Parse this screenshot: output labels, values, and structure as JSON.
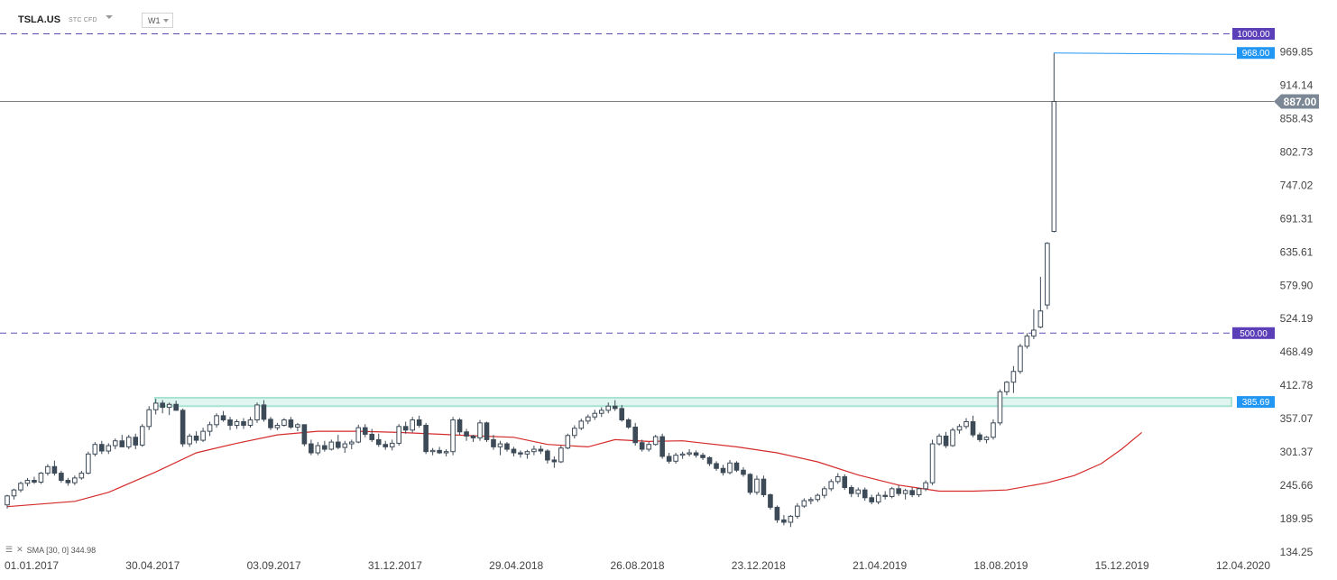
{
  "header": {
    "symbol": "TSLA.US",
    "instrument_type": "STC CFD",
    "interval": "W1"
  },
  "indicator_legend": {
    "icon": "bars-icon",
    "close": "✕",
    "text": "SMA [30, 0] 344.98"
  },
  "colors": {
    "bull_fill": "#ffffff",
    "bear_fill": "#3d4a57",
    "candle_stroke": "#3d4a57",
    "sma": "#d52b2b",
    "level_line": "#5b4db5",
    "level_badge": "#5b3fb8",
    "price_badge": "#2196f3",
    "current_badge": "#7b8794",
    "zone": "#a6e3d0"
  },
  "chart_data": {
    "type": "candlestick",
    "symbol": "TSLA.US",
    "timeframe": "W1",
    "ylim": [
      134.25,
      1025.4
    ],
    "y_ticks": [
      "969.85",
      "914.14",
      "858.43",
      "802.73",
      "747.02",
      "691.31",
      "635.61",
      "579.90",
      "524.19",
      "468.49",
      "412.78",
      "357.07",
      "301.37",
      "245.66",
      "189.95",
      "134.25"
    ],
    "x_ticks": [
      "01.01.2017",
      "30.04.2017",
      "03.09.2017",
      "31.12.2017",
      "29.04.2018",
      "26.08.2018",
      "23.12.2018",
      "21.04.2019",
      "18.08.2019",
      "15.12.2019",
      "12.04.2020"
    ],
    "grid": false,
    "weeks_total": 172,
    "candles": [
      {
        "o": 213,
        "h": 230,
        "l": 207,
        "c": 228
      },
      {
        "o": 228,
        "h": 240,
        "l": 222,
        "c": 238
      },
      {
        "o": 238,
        "h": 252,
        "l": 234,
        "c": 249
      },
      {
        "o": 249,
        "h": 258,
        "l": 244,
        "c": 254
      },
      {
        "o": 254,
        "h": 260,
        "l": 248,
        "c": 251
      },
      {
        "o": 251,
        "h": 268,
        "l": 248,
        "c": 266
      },
      {
        "o": 266,
        "h": 281,
        "l": 262,
        "c": 277
      },
      {
        "o": 277,
        "h": 287,
        "l": 262,
        "c": 266
      },
      {
        "o": 266,
        "h": 270,
        "l": 250,
        "c": 254
      },
      {
        "o": 254,
        "h": 258,
        "l": 245,
        "c": 250
      },
      {
        "o": 250,
        "h": 262,
        "l": 246,
        "c": 258
      },
      {
        "o": 258,
        "h": 270,
        "l": 255,
        "c": 266
      },
      {
        "o": 266,
        "h": 302,
        "l": 264,
        "c": 298
      },
      {
        "o": 298,
        "h": 318,
        "l": 294,
        "c": 314
      },
      {
        "o": 314,
        "h": 320,
        "l": 298,
        "c": 303
      },
      {
        "o": 303,
        "h": 316,
        "l": 298,
        "c": 312
      },
      {
        "o": 312,
        "h": 324,
        "l": 306,
        "c": 320
      },
      {
        "o": 320,
        "h": 330,
        "l": 312,
        "c": 310
      },
      {
        "o": 310,
        "h": 330,
        "l": 306,
        "c": 326
      },
      {
        "o": 326,
        "h": 332,
        "l": 306,
        "c": 313
      },
      {
        "o": 313,
        "h": 348,
        "l": 310,
        "c": 344
      },
      {
        "o": 344,
        "h": 378,
        "l": 338,
        "c": 372
      },
      {
        "o": 372,
        "h": 390,
        "l": 364,
        "c": 383
      },
      {
        "o": 383,
        "h": 388,
        "l": 366,
        "c": 376
      },
      {
        "o": 376,
        "h": 384,
        "l": 363,
        "c": 381
      },
      {
        "o": 381,
        "h": 387,
        "l": 372,
        "c": 371
      },
      {
        "o": 371,
        "h": 374,
        "l": 310,
        "c": 315
      },
      {
        "o": 315,
        "h": 332,
        "l": 310,
        "c": 328
      },
      {
        "o": 328,
        "h": 336,
        "l": 316,
        "c": 321
      },
      {
        "o": 321,
        "h": 342,
        "l": 318,
        "c": 336
      },
      {
        "o": 336,
        "h": 352,
        "l": 328,
        "c": 347
      },
      {
        "o": 347,
        "h": 366,
        "l": 342,
        "c": 362
      },
      {
        "o": 362,
        "h": 370,
        "l": 352,
        "c": 355
      },
      {
        "o": 355,
        "h": 360,
        "l": 338,
        "c": 346
      },
      {
        "o": 346,
        "h": 356,
        "l": 340,
        "c": 352
      },
      {
        "o": 352,
        "h": 358,
        "l": 340,
        "c": 346
      },
      {
        "o": 346,
        "h": 360,
        "l": 342,
        "c": 355
      },
      {
        "o": 355,
        "h": 384,
        "l": 350,
        "c": 380
      },
      {
        "o": 380,
        "h": 388,
        "l": 352,
        "c": 356
      },
      {
        "o": 356,
        "h": 360,
        "l": 338,
        "c": 342
      },
      {
        "o": 342,
        "h": 350,
        "l": 338,
        "c": 346
      },
      {
        "o": 346,
        "h": 358,
        "l": 344,
        "c": 355
      },
      {
        "o": 355,
        "h": 360,
        "l": 340,
        "c": 343
      },
      {
        "o": 343,
        "h": 350,
        "l": 336,
        "c": 347
      },
      {
        "o": 347,
        "h": 345,
        "l": 311,
        "c": 315
      },
      {
        "o": 315,
        "h": 322,
        "l": 296,
        "c": 300
      },
      {
        "o": 300,
        "h": 318,
        "l": 296,
        "c": 312
      },
      {
        "o": 312,
        "h": 320,
        "l": 302,
        "c": 306
      },
      {
        "o": 306,
        "h": 322,
        "l": 304,
        "c": 318
      },
      {
        "o": 318,
        "h": 330,
        "l": 306,
        "c": 309
      },
      {
        "o": 309,
        "h": 320,
        "l": 300,
        "c": 315
      },
      {
        "o": 315,
        "h": 322,
        "l": 306,
        "c": 318
      },
      {
        "o": 318,
        "h": 347,
        "l": 316,
        "c": 342
      },
      {
        "o": 342,
        "h": 348,
        "l": 326,
        "c": 331
      },
      {
        "o": 331,
        "h": 340,
        "l": 318,
        "c": 322
      },
      {
        "o": 322,
        "h": 332,
        "l": 310,
        "c": 314
      },
      {
        "o": 314,
        "h": 320,
        "l": 305,
        "c": 310
      },
      {
        "o": 310,
        "h": 322,
        "l": 304,
        "c": 316
      },
      {
        "o": 316,
        "h": 348,
        "l": 312,
        "c": 344
      },
      {
        "o": 344,
        "h": 352,
        "l": 332,
        "c": 338
      },
      {
        "o": 338,
        "h": 360,
        "l": 334,
        "c": 355
      },
      {
        "o": 355,
        "h": 362,
        "l": 342,
        "c": 346
      },
      {
        "o": 346,
        "h": 350,
        "l": 298,
        "c": 302
      },
      {
        "o": 302,
        "h": 308,
        "l": 296,
        "c": 304
      },
      {
        "o": 304,
        "h": 310,
        "l": 298,
        "c": 300
      },
      {
        "o": 300,
        "h": 306,
        "l": 294,
        "c": 302
      },
      {
        "o": 302,
        "h": 360,
        "l": 296,
        "c": 355
      },
      {
        "o": 355,
        "h": 358,
        "l": 330,
        "c": 335
      },
      {
        "o": 335,
        "h": 340,
        "l": 320,
        "c": 328
      },
      {
        "o": 328,
        "h": 330,
        "l": 318,
        "c": 325
      },
      {
        "o": 325,
        "h": 355,
        "l": 320,
        "c": 350
      },
      {
        "o": 350,
        "h": 352,
        "l": 318,
        "c": 322
      },
      {
        "o": 322,
        "h": 330,
        "l": 305,
        "c": 310
      },
      {
        "o": 310,
        "h": 320,
        "l": 296,
        "c": 315
      },
      {
        "o": 315,
        "h": 318,
        "l": 302,
        "c": 306
      },
      {
        "o": 306,
        "h": 310,
        "l": 294,
        "c": 300
      },
      {
        "o": 300,
        "h": 304,
        "l": 292,
        "c": 298
      },
      {
        "o": 298,
        "h": 305,
        "l": 290,
        "c": 302
      },
      {
        "o": 302,
        "h": 312,
        "l": 296,
        "c": 306
      },
      {
        "o": 306,
        "h": 312,
        "l": 298,
        "c": 303
      },
      {
        "o": 303,
        "h": 306,
        "l": 282,
        "c": 288
      },
      {
        "o": 288,
        "h": 294,
        "l": 275,
        "c": 285
      },
      {
        "o": 285,
        "h": 312,
        "l": 283,
        "c": 308
      },
      {
        "o": 308,
        "h": 332,
        "l": 306,
        "c": 329
      },
      {
        "o": 329,
        "h": 346,
        "l": 324,
        "c": 341
      },
      {
        "o": 341,
        "h": 357,
        "l": 338,
        "c": 353
      },
      {
        "o": 353,
        "h": 364,
        "l": 348,
        "c": 360
      },
      {
        "o": 360,
        "h": 372,
        "l": 355,
        "c": 366
      },
      {
        "o": 366,
        "h": 376,
        "l": 360,
        "c": 371
      },
      {
        "o": 371,
        "h": 384,
        "l": 366,
        "c": 378
      },
      {
        "o": 378,
        "h": 388,
        "l": 370,
        "c": 374
      },
      {
        "o": 374,
        "h": 380,
        "l": 352,
        "c": 355
      },
      {
        "o": 355,
        "h": 358,
        "l": 340,
        "c": 343
      },
      {
        "o": 343,
        "h": 350,
        "l": 312,
        "c": 317
      },
      {
        "o": 317,
        "h": 322,
        "l": 302,
        "c": 306
      },
      {
        "o": 306,
        "h": 318,
        "l": 302,
        "c": 314
      },
      {
        "o": 314,
        "h": 330,
        "l": 312,
        "c": 327
      },
      {
        "o": 327,
        "h": 332,
        "l": 290,
        "c": 294
      },
      {
        "o": 294,
        "h": 300,
        "l": 282,
        "c": 286
      },
      {
        "o": 286,
        "h": 300,
        "l": 282,
        "c": 296
      },
      {
        "o": 296,
        "h": 302,
        "l": 290,
        "c": 298
      },
      {
        "o": 298,
        "h": 306,
        "l": 294,
        "c": 300
      },
      {
        "o": 300,
        "h": 304,
        "l": 292,
        "c": 296
      },
      {
        "o": 296,
        "h": 300,
        "l": 288,
        "c": 292
      },
      {
        "o": 292,
        "h": 294,
        "l": 278,
        "c": 282
      },
      {
        "o": 282,
        "h": 286,
        "l": 270,
        "c": 274
      },
      {
        "o": 274,
        "h": 280,
        "l": 262,
        "c": 267
      },
      {
        "o": 267,
        "h": 288,
        "l": 264,
        "c": 283
      },
      {
        "o": 283,
        "h": 286,
        "l": 268,
        "c": 271
      },
      {
        "o": 271,
        "h": 276,
        "l": 260,
        "c": 264
      },
      {
        "o": 264,
        "h": 266,
        "l": 230,
        "c": 234
      },
      {
        "o": 234,
        "h": 262,
        "l": 230,
        "c": 256
      },
      {
        "o": 256,
        "h": 262,
        "l": 226,
        "c": 230
      },
      {
        "o": 230,
        "h": 232,
        "l": 205,
        "c": 209
      },
      {
        "o": 209,
        "h": 212,
        "l": 183,
        "c": 188
      },
      {
        "o": 188,
        "h": 196,
        "l": 179,
        "c": 184
      },
      {
        "o": 184,
        "h": 196,
        "l": 176,
        "c": 194
      },
      {
        "o": 194,
        "h": 216,
        "l": 190,
        "c": 211
      },
      {
        "o": 211,
        "h": 224,
        "l": 208,
        "c": 220
      },
      {
        "o": 220,
        "h": 226,
        "l": 214,
        "c": 222
      },
      {
        "o": 222,
        "h": 232,
        "l": 218,
        "c": 229
      },
      {
        "o": 229,
        "h": 244,
        "l": 224,
        "c": 240
      },
      {
        "o": 240,
        "h": 256,
        "l": 236,
        "c": 252
      },
      {
        "o": 252,
        "h": 266,
        "l": 248,
        "c": 260
      },
      {
        "o": 260,
        "h": 264,
        "l": 238,
        "c": 242
      },
      {
        "o": 242,
        "h": 246,
        "l": 226,
        "c": 232
      },
      {
        "o": 232,
        "h": 242,
        "l": 226,
        "c": 238
      },
      {
        "o": 238,
        "h": 242,
        "l": 220,
        "c": 225
      },
      {
        "o": 225,
        "h": 230,
        "l": 214,
        "c": 218
      },
      {
        "o": 218,
        "h": 234,
        "l": 214,
        "c": 229
      },
      {
        "o": 229,
        "h": 236,
        "l": 222,
        "c": 227
      },
      {
        "o": 227,
        "h": 243,
        "l": 224,
        "c": 240
      },
      {
        "o": 240,
        "h": 246,
        "l": 228,
        "c": 232
      },
      {
        "o": 232,
        "h": 240,
        "l": 222,
        "c": 237
      },
      {
        "o": 237,
        "h": 242,
        "l": 226,
        "c": 230
      },
      {
        "o": 230,
        "h": 242,
        "l": 226,
        "c": 240
      },
      {
        "o": 240,
        "h": 254,
        "l": 236,
        "c": 250
      },
      {
        "o": 250,
        "h": 322,
        "l": 246,
        "c": 315
      },
      {
        "o": 315,
        "h": 332,
        "l": 312,
        "c": 328
      },
      {
        "o": 328,
        "h": 335,
        "l": 308,
        "c": 312
      },
      {
        "o": 312,
        "h": 342,
        "l": 310,
        "c": 338
      },
      {
        "o": 338,
        "h": 348,
        "l": 332,
        "c": 344
      },
      {
        "o": 344,
        "h": 358,
        "l": 340,
        "c": 352
      },
      {
        "o": 352,
        "h": 362,
        "l": 326,
        "c": 330
      },
      {
        "o": 330,
        "h": 334,
        "l": 318,
        "c": 322
      },
      {
        "o": 322,
        "h": 328,
        "l": 316,
        "c": 326
      },
      {
        "o": 326,
        "h": 356,
        "l": 322,
        "c": 350
      },
      {
        "o": 350,
        "h": 406,
        "l": 346,
        "c": 402
      },
      {
        "o": 402,
        "h": 420,
        "l": 396,
        "c": 418
      },
      {
        "o": 418,
        "h": 445,
        "l": 400,
        "c": 436
      },
      {
        "o": 436,
        "h": 482,
        "l": 432,
        "c": 478
      },
      {
        "o": 478,
        "h": 500,
        "l": 474,
        "c": 495
      },
      {
        "o": 495,
        "h": 540,
        "l": 490,
        "c": 505
      },
      {
        "o": 510,
        "h": 594,
        "l": 508,
        "c": 537
      },
      {
        "o": 547,
        "h": 652,
        "l": 540,
        "c": 650
      },
      {
        "o": 670,
        "h": 968,
        "l": 668,
        "c": 887
      }
    ],
    "sma": {
      "name": "SMA [30, 0]",
      "last": 344.98,
      "points": [
        [
          0,
          210
        ],
        [
          10,
          219
        ],
        [
          15,
          234
        ],
        [
          22,
          268
        ],
        [
          28,
          300
        ],
        [
          34,
          316
        ],
        [
          40,
          330
        ],
        [
          46,
          336
        ],
        [
          52,
          336
        ],
        [
          58,
          334
        ],
        [
          64,
          331
        ],
        [
          70,
          328
        ],
        [
          75,
          326
        ],
        [
          80,
          314
        ],
        [
          86,
          310
        ],
        [
          90,
          322
        ],
        [
          95,
          319
        ],
        [
          100,
          320
        ],
        [
          108,
          310
        ],
        [
          114,
          300
        ],
        [
          120,
          285
        ],
        [
          126,
          263
        ],
        [
          132,
          246
        ],
        [
          138,
          236
        ],
        [
          143,
          236
        ],
        [
          148,
          238
        ],
        [
          154,
          250
        ],
        [
          158,
          262
        ],
        [
          162,
          282
        ],
        [
          165,
          306
        ],
        [
          168,
          334
        ]
      ]
    },
    "levels": [
      {
        "label": "1000.00",
        "value": 1000,
        "style": "dashed"
      },
      {
        "label": "500.00",
        "value": 500,
        "style": "dashed"
      }
    ],
    "zone": {
      "label": "385.69",
      "low": 378,
      "high": 392
    },
    "high_marker": {
      "label": "968.00",
      "value": 968
    },
    "current_price": {
      "label": "887.00",
      "value": 887
    }
  }
}
